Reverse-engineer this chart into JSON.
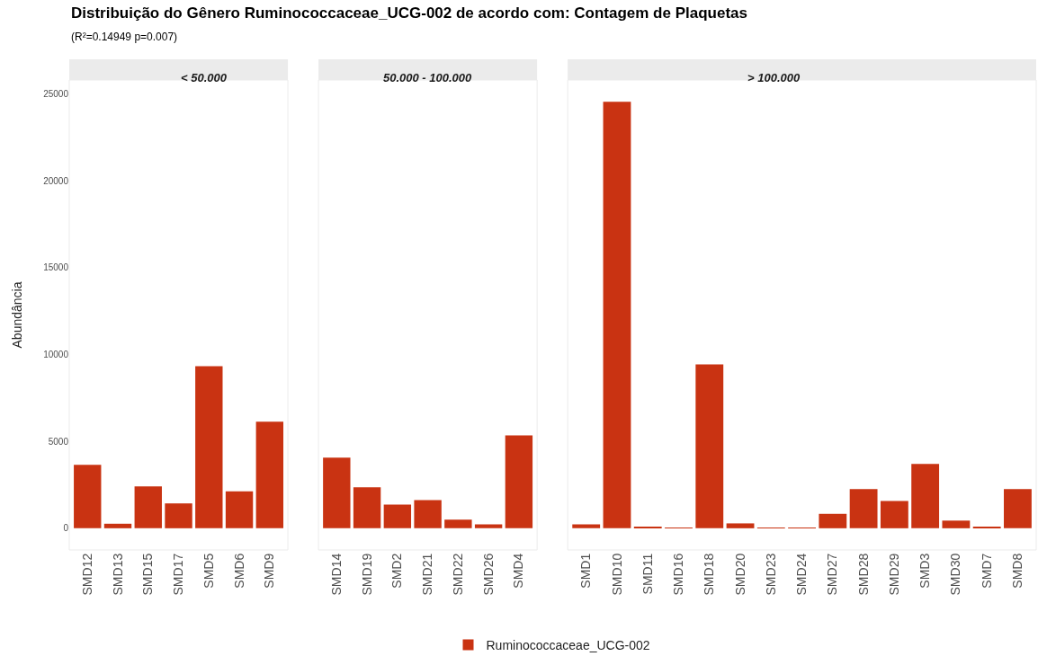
{
  "chart_data": [
    {
      "type": "bar",
      "title": "< 50.000",
      "ylabel": "Abundância",
      "annotations": [
        "Distribuição do Gênero Ruminococcaceae_UCG-002 de acordo com: Contagem de Plaquetas",
        "(R²=0.14949 p=0.007)"
      ],
      "categories": [
        "SMD12",
        "SMD13",
        "SMD15",
        "SMD17",
        "SMD5",
        "SMD6",
        "SMD9"
      ],
      "series": [
        {
          "name": "Ruminococcaceae_UCG-002",
          "color": "#c93312",
          "values": [
            3650,
            260,
            2410,
            1430,
            9330,
            2130,
            6130
          ]
        }
      ],
      "ylim": [
        -1250,
        25800
      ],
      "yticks": [
        0,
        5000,
        10000,
        15000,
        20000,
        25000
      ],
      "grid": false,
      "legend": "bottom"
    },
    {
      "type": "bar",
      "title": "50.000 - 100.000",
      "categories": [
        "SMD14",
        "SMD19",
        "SMD2",
        "SMD21",
        "SMD22",
        "SMD26",
        "SMD4"
      ],
      "series": [
        {
          "color": "#c93312",
          "values": [
            4060,
            2360,
            1360,
            1620,
            490,
            230,
            5340
          ]
        }
      ],
      "ylim": [
        -1250,
        25800
      ],
      "yticks": [
        0,
        5000,
        10000,
        15000,
        20000,
        25000
      ],
      "grid": false,
      "tick_labels": "x"
    },
    {
      "type": "bar",
      "title": "> 100.000",
      "categories": [
        "SMD1",
        "SMD10",
        "SMD11",
        "SMD16",
        "SMD18",
        "SMD20",
        "SMD23",
        "SMD24",
        "SMD27",
        "SMD28",
        "SMD29",
        "SMD3",
        "SMD30",
        "SMD7",
        "SMD8"
      ],
      "series": [
        {
          "color": "#c93312",
          "values": [
            230,
            24540,
            70,
            20,
            9430,
            280,
            20,
            20,
            830,
            2250,
            1570,
            3700,
            440,
            70,
            2250
          ]
        }
      ],
      "ylim": [
        -1250,
        25800
      ],
      "yticks": [
        0,
        5000,
        10000,
        15000,
        20000,
        25000
      ],
      "grid": false,
      "tick_labels": "x"
    }
  ]
}
